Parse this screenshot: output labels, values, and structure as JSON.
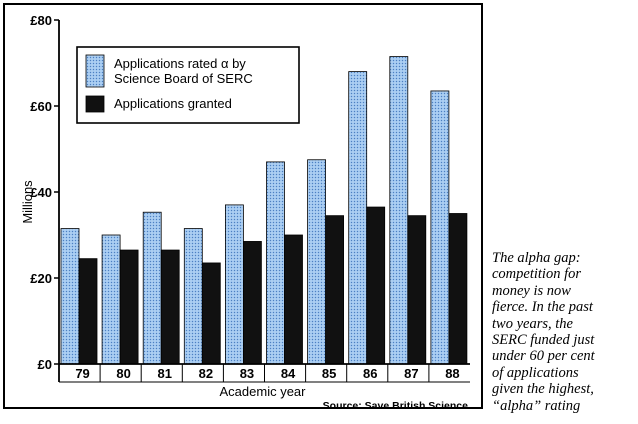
{
  "chart_data": {
    "type": "bar",
    "categories": [
      "79",
      "80",
      "81",
      "82",
      "83",
      "84",
      "85",
      "86",
      "87",
      "88"
    ],
    "series": [
      {
        "name": "Applications rated α by Science Board of SERC",
        "values": [
          31.5,
          30,
          35.3,
          31.5,
          37,
          47,
          47.5,
          68,
          71.5,
          63.5
        ],
        "color": "#8fb8e8"
      },
      {
        "name": "Applications granted",
        "values": [
          24.5,
          26.5,
          26.5,
          23.5,
          28.5,
          30,
          34.5,
          36.5,
          34.5,
          35
        ],
        "color": "#111111"
      }
    ],
    "yticks": [
      "£0",
      "£20",
      "£40",
      "£60",
      "£80"
    ],
    "ytick_values": [
      0,
      20,
      40,
      60,
      80
    ],
    "ylim": [
      0,
      80
    ],
    "ylabel": "Millions",
    "xlabel": "Academic year",
    "legend": {
      "entries": [
        {
          "lines": [
            "Applications rated α by",
            "Science Board of SERC"
          ]
        },
        {
          "lines": [
            "Applications granted"
          ]
        }
      ],
      "placement": "top-left"
    },
    "source": "Source: Save British Science"
  },
  "caption": {
    "lines": [
      "The alpha gap:",
      "competition for",
      "money is now",
      "fierce. In the past",
      "two years, the",
      "SERC funded just",
      "under 60 per cent",
      "of applications",
      "given the highest,",
      "“alpha” rating"
    ]
  }
}
